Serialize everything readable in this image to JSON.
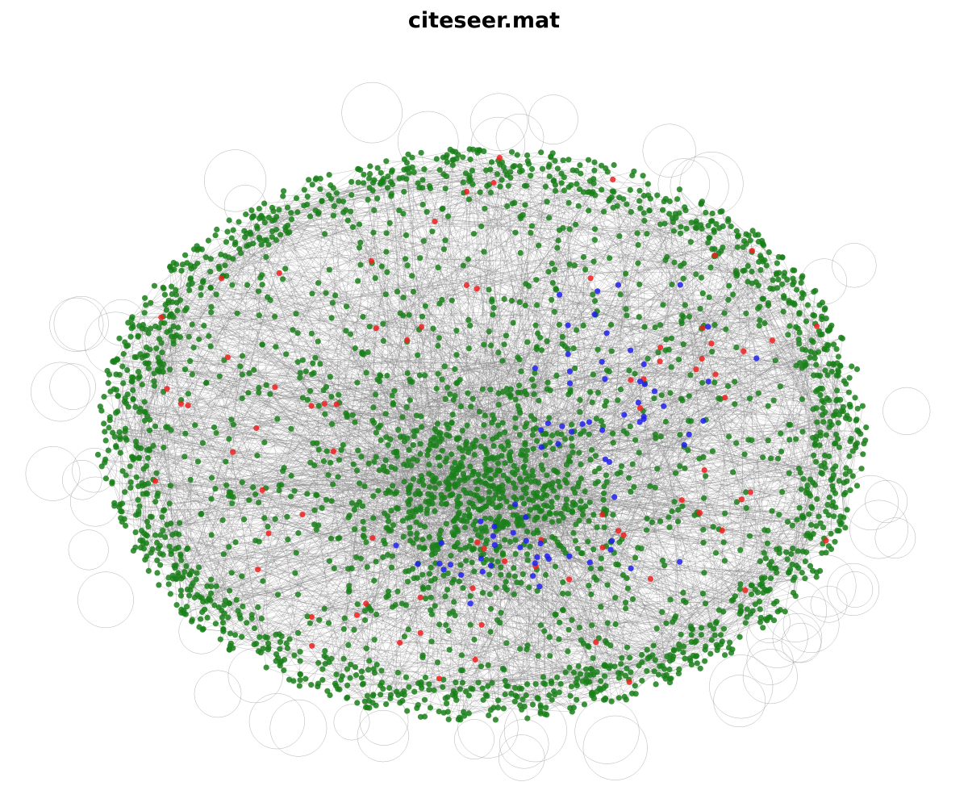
{
  "title": "citeseer.mat",
  "colors": {
    "background": "#ffffff",
    "edge": "#808080",
    "node_majority": "#1a801a",
    "node_red": "#f02020",
    "node_blue": "#2020ee"
  },
  "graph": {
    "layout": "force-directed",
    "axes": "off",
    "node_groups": [
      {
        "color_key": "node_majority",
        "approx_count": 2950
      },
      {
        "color_key": "node_red",
        "approx_count": 80
      },
      {
        "color_key": "node_blue",
        "approx_count": 75
      }
    ],
    "edge_style": "thin gray lines, many self-loops drawn as circles at the periphery"
  }
}
